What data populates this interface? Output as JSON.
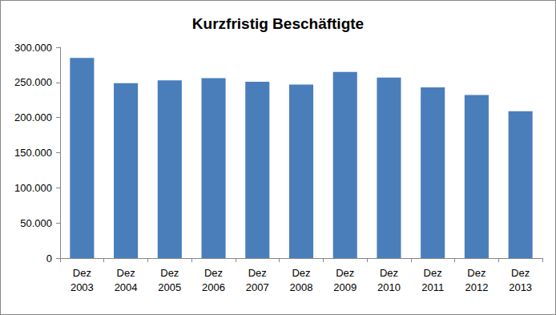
{
  "chart_data": {
    "type": "bar",
    "title": "Kurzfristig Beschäftigte",
    "categories": [
      "Dez\n2003",
      "Dez\n2004",
      "Dez\n2005",
      "Dez\n2006",
      "Dez\n2007",
      "Dez\n2008",
      "Dez\n2009",
      "Dez\n2010",
      "Dez\n2011",
      "Dez\n2012",
      "Dez\n2013"
    ],
    "values": [
      285000,
      249000,
      253000,
      256000,
      251000,
      247000,
      265000,
      257000,
      243000,
      232000,
      209000
    ],
    "color": "#4a7ebb",
    "ylim": [
      0,
      300000
    ],
    "yticks": [
      0,
      {
        "value": 50000,
        "label": "50.000"
      },
      {
        "value": 100000,
        "label": "100.000"
      },
      {
        "value": 150000,
        "label": "150.000"
      },
      {
        "value": 200000,
        "label": "200.000"
      },
      {
        "value": 250000,
        "label": "250.000"
      },
      {
        "value": 300000,
        "label": "300.000"
      }
    ],
    "grid": false
  }
}
